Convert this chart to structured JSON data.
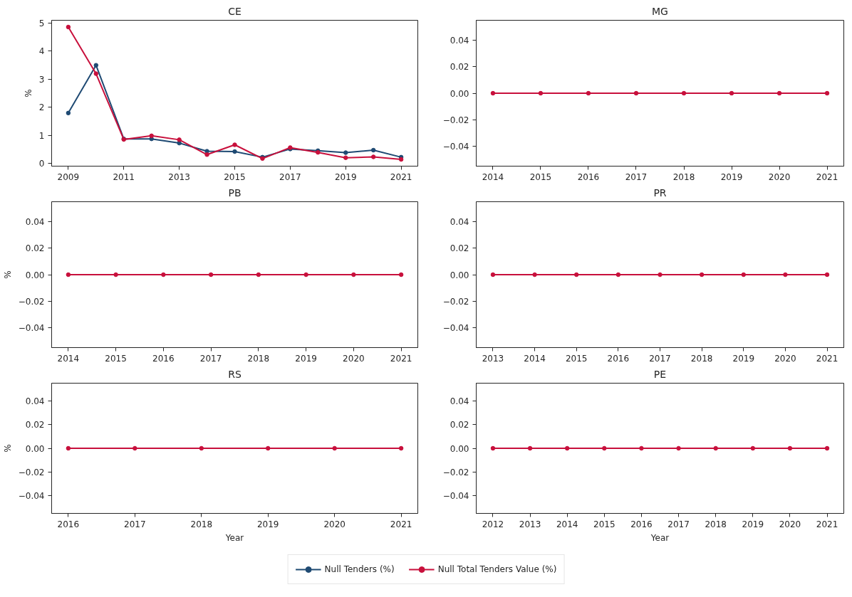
{
  "chart_data": [
    {
      "type": "line",
      "title": "CE",
      "ylabel": "%",
      "x": [
        2009,
        2010,
        2011,
        2012,
        2013,
        2014,
        2015,
        2016,
        2017,
        2018,
        2019,
        2020,
        2021
      ],
      "xlim": [
        2008.4,
        2021.6
      ],
      "xticks": [
        2009,
        2011,
        2013,
        2015,
        2017,
        2019,
        2021
      ],
      "ylim": [
        -0.09,
        5.1
      ],
      "yticks": [
        0,
        1,
        2,
        3,
        4,
        5
      ],
      "marker": "circle",
      "grid": false,
      "legend": "bottom",
      "series": [
        {
          "name": "Null Tenders (%)",
          "color": "#1f4a73",
          "values": [
            1.8,
            3.5,
            0.88,
            0.88,
            0.73,
            0.44,
            0.43,
            0.23,
            0.52,
            0.46,
            0.39,
            0.48,
            0.23
          ]
        },
        {
          "name": "Null Total Tenders Value (%)",
          "color": "#c8103c",
          "values": [
            4.86,
            3.2,
            0.86,
            0.99,
            0.85,
            0.32,
            0.67,
            0.18,
            0.57,
            0.4,
            0.21,
            0.24,
            0.15
          ]
        }
      ]
    },
    {
      "type": "line",
      "title": "MG",
      "x": [
        2014,
        2015,
        2016,
        2017,
        2018,
        2019,
        2020,
        2021
      ],
      "xlim": [
        2013.65,
        2021.35
      ],
      "xticks": [
        2014,
        2015,
        2016,
        2017,
        2018,
        2019,
        2020,
        2021
      ],
      "ylim": [
        -0.055,
        0.055
      ],
      "yticks": [
        {
          "value": -0.04,
          "label": "−0.04"
        },
        {
          "value": -0.02,
          "label": "−0.02"
        },
        {
          "value": 0,
          "label": "0.00"
        },
        0.02,
        0.04
      ],
      "marker": "circle",
      "grid": false,
      "series": [
        {
          "color": "#1f4a73",
          "values": [
            null,
            null,
            null,
            null,
            null,
            null,
            null,
            null
          ]
        },
        {
          "color": "#c8103c",
          "values": [
            0,
            0,
            0,
            0,
            0,
            0,
            0,
            0
          ]
        }
      ]
    },
    {
      "type": "line",
      "title": "PB",
      "ylabel": "%",
      "x": [
        2014,
        2015,
        2016,
        2017,
        2018,
        2019,
        2020,
        2021
      ],
      "xlim": [
        2013.65,
        2021.35
      ],
      "xticks": [
        2014,
        2015,
        2016,
        2017,
        2018,
        2019,
        2020,
        2021
      ],
      "ylim": [
        -0.055,
        0.055
      ],
      "yticks": [
        {
          "value": -0.04,
          "label": "−0.04"
        },
        {
          "value": -0.02,
          "label": "−0.02"
        },
        {
          "value": 0,
          "label": "0.00"
        },
        0.02,
        0.04
      ],
      "marker": "circle",
      "grid": false,
      "series": [
        {
          "color": "#1f4a73",
          "values": [
            null,
            null,
            null,
            null,
            null,
            null,
            null,
            null
          ]
        },
        {
          "color": "#c8103c",
          "values": [
            0,
            0,
            0,
            0,
            0,
            0,
            0,
            0
          ]
        }
      ]
    },
    {
      "type": "line",
      "title": "PR",
      "x": [
        2013,
        2014,
        2015,
        2016,
        2017,
        2018,
        2019,
        2020,
        2021
      ],
      "xlim": [
        2012.6,
        2021.4
      ],
      "xticks": [
        2013,
        2014,
        2015,
        2016,
        2017,
        2018,
        2019,
        2020,
        2021
      ],
      "ylim": [
        -0.055,
        0.055
      ],
      "yticks": [
        {
          "value": -0.04,
          "label": "−0.04"
        },
        {
          "value": -0.02,
          "label": "−0.02"
        },
        {
          "value": 0,
          "label": "0.00"
        },
        0.02,
        0.04
      ],
      "marker": "circle",
      "grid": false,
      "series": [
        {
          "color": "#1f4a73",
          "values": [
            null,
            null,
            null,
            null,
            null,
            null,
            null,
            null,
            null
          ]
        },
        {
          "color": "#c8103c",
          "values": [
            0,
            0,
            0,
            0,
            0,
            0,
            0,
            0,
            0
          ]
        }
      ]
    },
    {
      "type": "line",
      "title": "RS",
      "ylabel": "%",
      "xlabel": "Year",
      "x": [
        2016,
        2017,
        2018,
        2019,
        2020,
        2021
      ],
      "xlim": [
        2015.75,
        2021.25
      ],
      "xticks": [
        2016,
        2017,
        2018,
        2019,
        2020,
        2021
      ],
      "ylim": [
        -0.055,
        0.055
      ],
      "yticks": [
        {
          "value": -0.04,
          "label": "−0.04"
        },
        {
          "value": -0.02,
          "label": "−0.02"
        },
        {
          "value": 0,
          "label": "0.00"
        },
        0.02,
        0.04
      ],
      "marker": "circle",
      "grid": false,
      "series": [
        {
          "color": "#1f4a73",
          "values": [
            null,
            null,
            null,
            null,
            null,
            null
          ]
        },
        {
          "color": "#c8103c",
          "values": [
            0,
            0,
            0,
            0,
            0,
            0
          ]
        }
      ]
    },
    {
      "type": "line",
      "title": "PE",
      "xlabel": "Year",
      "x": [
        2012,
        2013,
        2014,
        2015,
        2016,
        2017,
        2018,
        2019,
        2020,
        2021
      ],
      "xlim": [
        2011.55,
        2021.45
      ],
      "xticks": [
        2012,
        2013,
        2014,
        2015,
        2016,
        2017,
        2018,
        2019,
        2020,
        2021
      ],
      "ylim": [
        -0.055,
        0.055
      ],
      "yticks": [
        {
          "value": -0.04,
          "label": "−0.04"
        },
        {
          "value": -0.02,
          "label": "−0.02"
        },
        {
          "value": 0,
          "label": "0.00"
        },
        0.02,
        0.04
      ],
      "marker": "circle",
      "grid": false,
      "series": [
        {
          "color": "#1f4a73",
          "values": [
            null,
            null,
            null,
            null,
            null,
            null,
            null,
            null,
            null,
            null
          ]
        },
        {
          "color": "#c8103c",
          "values": [
            0,
            0,
            0,
            0,
            0,
            0,
            0,
            0,
            0,
            0
          ]
        }
      ]
    }
  ]
}
